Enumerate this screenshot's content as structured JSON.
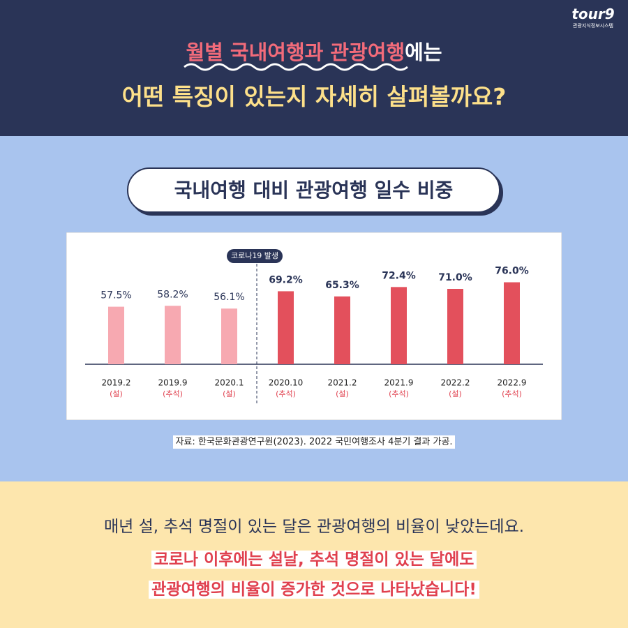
{
  "logo": {
    "name": "tour9",
    "subtitle": "관광지식정보시스템"
  },
  "header": {
    "line1_highlight": "월별 국내여행과 관광여행",
    "line1_rest": "에는",
    "line2": "어떤 특징이 있는지 자세히 살펴볼까요?"
  },
  "chart_data": {
    "type": "bar",
    "title": "국내여행 대비 관광여행 일수 비중",
    "categories": [
      "2019.2",
      "2019.9",
      "2020.1",
      "2020.10",
      "2021.2",
      "2021.9",
      "2022.2",
      "2022.9"
    ],
    "sublabels": [
      "(설)",
      "(추석)",
      "(설)",
      "(추석)",
      "(설)",
      "(추석)",
      "(설)",
      "(추석)"
    ],
    "values": [
      57.5,
      58.2,
      56.1,
      69.2,
      65.3,
      72.4,
      71.0,
      76.0
    ],
    "value_labels": [
      "57.5%",
      "58.2%",
      "56.1%",
      "69.2%",
      "65.3%",
      "72.4%",
      "71.0%",
      "76.0%"
    ],
    "colors": [
      "#f7a9b1",
      "#f7a9b1",
      "#f7a9b1",
      "#e3505c",
      "#e3505c",
      "#e3505c",
      "#e3505c",
      "#e3505c"
    ],
    "annotation": "코로나19 발생",
    "ylim": [
      14,
      90
    ]
  },
  "source": "자료: 한국문화관광연구원(2023). 2022 국민여행조사 4분기 결과 가공.",
  "footer": {
    "line1": "매년 설, 추석 명절이 있는 달은 관광여행의 비율이 낮았는데요.",
    "line2": "코로나 이후에는 설날, 추석 명절이 있는 달에도",
    "line3": "관광여행의 비율이 증가한 것으로 나타났습니다!"
  }
}
